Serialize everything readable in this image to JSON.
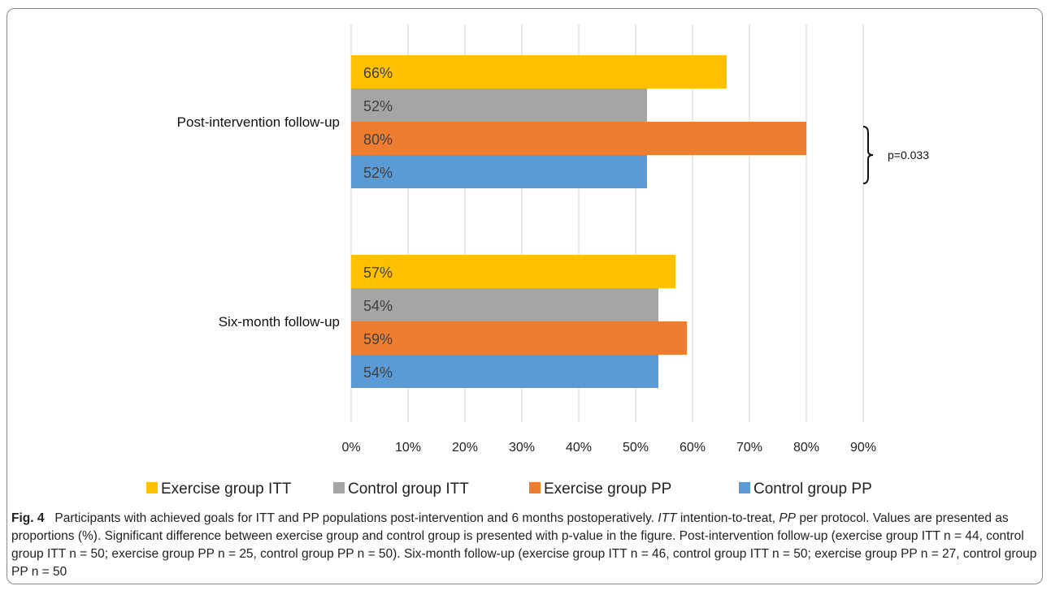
{
  "chart_data": {
    "type": "bar",
    "orientation": "horizontal",
    "categories": [
      "Post-intervention follow-up",
      "Six-month follow-up"
    ],
    "series": [
      {
        "name": "Exercise group ITT",
        "color": "#FFC000",
        "values": [
          66,
          57
        ],
        "labels": [
          "66%",
          "57%"
        ]
      },
      {
        "name": "Control group ITT",
        "color": "#A5A5A5",
        "values": [
          52,
          54
        ],
        "labels": [
          "52%",
          "54%"
        ]
      },
      {
        "name": "Exercise group PP",
        "color": "#ED7D31",
        "values": [
          80,
          59
        ],
        "labels": [
          "80%",
          "59%"
        ]
      },
      {
        "name": "Control group PP",
        "color": "#5B9BD5",
        "values": [
          52,
          54
        ],
        "labels": [
          "52%",
          "54%"
        ]
      }
    ],
    "xlim": [
      0,
      90
    ],
    "x_ticks": [
      "0%",
      "10%",
      "20%",
      "30%",
      "40%",
      "50%",
      "60%",
      "70%",
      "80%",
      "90%"
    ],
    "grid": true,
    "legend_position": "bottom",
    "annotation": {
      "text": "p=0.033",
      "category": "Post-intervention follow-up",
      "series": [
        "Exercise group PP",
        "Control group PP"
      ]
    }
  },
  "caption": {
    "figure_label": "Fig. 4",
    "text_1": "Participants with achieved goals for ITT and PP populations post-intervention and 6 months postoperatively.",
    "abbr_1": "ITT",
    "text_2": "intention-to-treat,",
    "abbr_2": "PP",
    "text_3": "per protocol. Values are presented as proportions (%). Significant difference between exercise group and control group is presented with p-value in the figure. Post-intervention follow-up (exercise group ITT n = 44, control group ITT n = 50; exercise group PP n = 25, control group PP n = 50). Six-month follow-up (exercise group ITT n = 46, control group ITT n = 50; exercise group PP n = 27, control group PP n = 50"
  }
}
